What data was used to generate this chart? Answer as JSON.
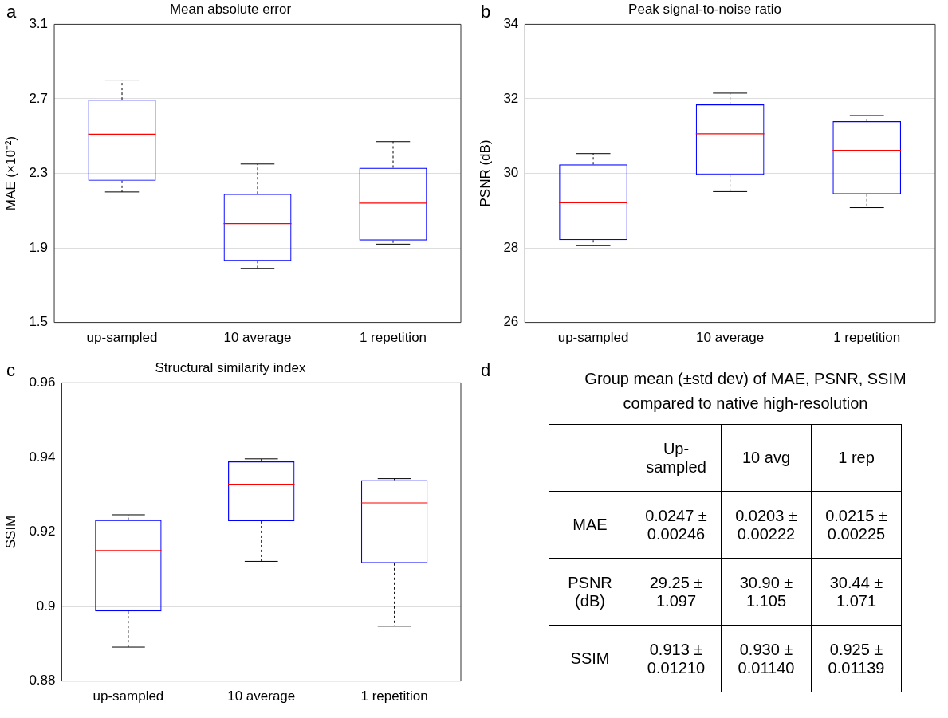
{
  "chart_data": [
    {
      "type": "box",
      "title": "Mean absolute error",
      "ylabel": "MAE (×10⁻²)",
      "annotations": [
        "a"
      ],
      "categories": [
        "up-sampled",
        "10 average",
        "1 repetition"
      ],
      "ylim": [
        1.5,
        3.1
      ],
      "yticks": [
        1.5,
        1.9,
        2.3,
        2.7,
        3.1
      ],
      "grid": "y",
      "series": [
        {
          "color": "#0000ff",
          "boxes": [
            {
              "low": 2.2,
              "q1": 2.26,
              "median": 2.51,
              "q3": 2.695,
              "high": 2.8
            },
            {
              "low": 1.79,
              "q1": 1.83,
              "median": 2.03,
              "q3": 2.19,
              "high": 2.35
            },
            {
              "low": 1.92,
              "q1": 1.94,
              "median": 2.14,
              "q3": 2.33,
              "high": 2.47
            }
          ]
        }
      ]
    },
    {
      "type": "box",
      "title": "Peak signal-to-noise ratio",
      "ylabel": "PSNR (dB)",
      "annotations": [
        "b"
      ],
      "categories": [
        "up-sampled",
        "10 average",
        "1 repetition"
      ],
      "ylim": [
        26,
        34
      ],
      "yticks": [
        26,
        28,
        30,
        32,
        34
      ],
      "grid": "y",
      "series": [
        {
          "color": "#0000ff",
          "boxes": [
            {
              "low": 28.06,
              "q1": 28.21,
              "median": 29.21,
              "q3": 30.24,
              "high": 30.53
            },
            {
              "low": 29.51,
              "q1": 29.96,
              "median": 31.06,
              "q3": 31.85,
              "high": 32.15
            },
            {
              "low": 29.08,
              "q1": 29.44,
              "median": 30.62,
              "q3": 31.4,
              "high": 31.55
            }
          ]
        }
      ]
    },
    {
      "type": "box",
      "title": "Structural similarity index",
      "ylabel": "SSIM",
      "annotations": [
        "c"
      ],
      "categories": [
        "up-sampled",
        "10 average",
        "1 repetition"
      ],
      "ylim": [
        0.88,
        0.96
      ],
      "yticks": [
        0.88,
        0.9,
        0.92,
        0.94,
        0.96
      ],
      "grid": "y",
      "series": [
        {
          "color": "#0000ff",
          "boxes": [
            {
              "low": 0.8891,
              "q1": 0.8987,
              "median": 0.915,
              "q3": 0.9232,
              "high": 0.9246
            },
            {
              "low": 0.9121,
              "q1": 0.9229,
              "median": 0.9328,
              "q3": 0.9389,
              "high": 0.9396
            },
            {
              "low": 0.8947,
              "q1": 0.9116,
              "median": 0.9278,
              "q3": 0.9339,
              "high": 0.9343
            }
          ]
        }
      ]
    },
    {
      "type": "other",
      "title": "Group mean (±std dev) of MAE, PSNR, SSIM compared to native high-resolution",
      "annotations": [
        "d"
      ],
      "categories": [
        "Up-sampled",
        "10 avg",
        "1 rep"
      ],
      "y_categories": [
        "MAE",
        "PSNR (dB)",
        "SSIM"
      ],
      "cell_labels": [
        [
          "0.0247 ± 0.00246",
          "0.0203 ± 0.00222",
          "0.0215 ± 0.00225"
        ],
        [
          "29.25 ± 1.097",
          "30.90 ± 1.105",
          "30.44 ± 1.071"
        ],
        [
          "0.913 ± 0.01210",
          "0.930 ± 0.01140",
          "0.925 ± 0.01139"
        ]
      ]
    }
  ]
}
